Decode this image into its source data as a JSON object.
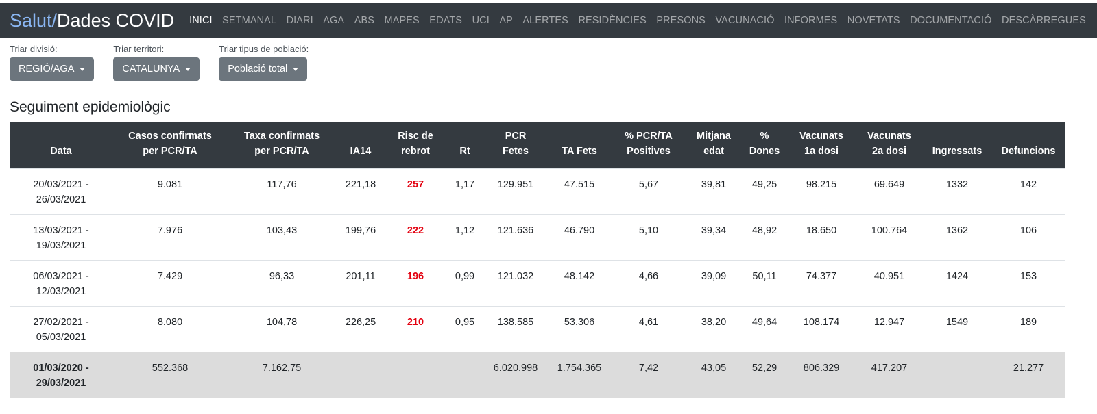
{
  "brand": {
    "part1": "Salut/",
    "part2": "Dades COVID"
  },
  "nav": [
    "INICI",
    "SETMANAL",
    "DIARI",
    "AGA",
    "ABS",
    "MAPES",
    "EDATS",
    "UCI",
    "AP",
    "ALERTES",
    "RESIDÈNCIES",
    "PRESONS",
    "VACUNACIÓ",
    "INFORMES",
    "NOVETATS",
    "DOCUMENTACIÓ",
    "DESCÀRREGUES"
  ],
  "nav_active": "INICI",
  "filters": [
    {
      "label": "Triar divisió:",
      "value": "REGIÓ/AGA"
    },
    {
      "label": "Triar territori:",
      "value": "CATALUNYA"
    },
    {
      "label": "Triar tipus de població:",
      "value": "Població total"
    }
  ],
  "section_title": "Seguiment epidemiològic",
  "table": {
    "headers": [
      [
        "Data"
      ],
      [
        "Casos confirmats",
        "per PCR/TA"
      ],
      [
        "Taxa confirmats",
        "per PCR/TA"
      ],
      [
        "IA14"
      ],
      [
        "Risc de",
        "rebrot"
      ],
      [
        "Rt"
      ],
      [
        "PCR",
        "Fetes"
      ],
      [
        "TA Fets"
      ],
      [
        "% PCR/TA",
        "Positives"
      ],
      [
        "Mitjana",
        "edat"
      ],
      [
        "%",
        "Dones"
      ],
      [
        "Vacunats",
        "1a dosi"
      ],
      [
        "Vacunats",
        "2a dosi"
      ],
      [
        "Ingressats"
      ],
      [
        "Defuncions"
      ]
    ],
    "rows": [
      [
        "20/03/2021 -",
        "26/03/2021",
        "9.081",
        "117,76",
        "221,18",
        "257",
        "1,17",
        "129.951",
        "47.515",
        "5,67",
        "39,81",
        "49,25",
        "98.215",
        "69.649",
        "1332",
        "142"
      ],
      [
        "13/03/2021 -",
        "19/03/2021",
        "7.976",
        "103,43",
        "199,76",
        "222",
        "1,12",
        "121.636",
        "46.790",
        "5,10",
        "39,34",
        "48,92",
        "18.650",
        "100.764",
        "1362",
        "106"
      ],
      [
        "06/03/2021 -",
        "12/03/2021",
        "7.429",
        "96,33",
        "201,11",
        "196",
        "0,99",
        "121.032",
        "48.142",
        "4,66",
        "39,09",
        "50,11",
        "74.377",
        "40.951",
        "1424",
        "153"
      ],
      [
        "27/02/2021 -",
        "05/03/2021",
        "8.080",
        "104,78",
        "226,25",
        "210",
        "0,95",
        "138.585",
        "53.306",
        "4,61",
        "38,20",
        "49,64",
        "108.174",
        "12.947",
        "1549",
        "189"
      ]
    ],
    "total": [
      "01/03/2020 -",
      "29/03/2021",
      "552.368",
      "7.162,75",
      "",
      "",
      "",
      "6.020.998",
      "1.754.365",
      "7,42",
      "43,05",
      "52,29",
      "806.329",
      "417.207",
      "",
      "21.277"
    ]
  },
  "colors": {
    "navbar": "#343a40",
    "brand_accent": "#8ab6f2",
    "risk": "#e3000f",
    "button": "#6c757d",
    "total_row": "#dcdcdc"
  }
}
